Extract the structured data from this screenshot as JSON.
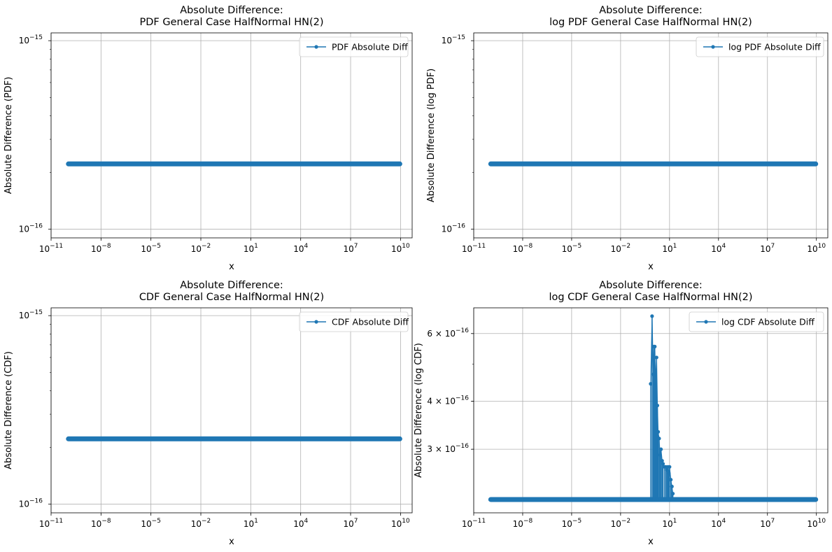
{
  "figure": {
    "background": "#ffffff",
    "line_color": "#1f77b4",
    "grid_color": "#b0b0b0"
  },
  "chart_data": [
    {
      "type": "line",
      "title": [
        "Absolute Difference:",
        "PDF General Case HalfNormal HN(2)"
      ],
      "xlabel": "x",
      "ylabel": "Absolute Difference (PDF)",
      "xscale": "log",
      "yscale": "log",
      "xlim": [
        1e-11,
        50000000000.0
      ],
      "ylim": [
        9e-17,
        1.1e-15
      ],
      "xtick_exponents": [
        -11,
        -8,
        -5,
        -2,
        1,
        4,
        7,
        10
      ],
      "ytick_exponents": [
        -15,
        -16
      ],
      "grid": true,
      "legend": "top-right",
      "series": [
        {
          "name": "PDF Absolute Diff",
          "marker": "dot",
          "x_range": [
            1e-10,
            10000000000.0
          ],
          "constant_y": 2.220446e-16
        }
      ]
    },
    {
      "type": "line",
      "title": [
        "Absolute Difference:",
        "log PDF General Case HalfNormal HN(2)"
      ],
      "xlabel": "x",
      "ylabel": "Absolute Difference (log PDF)",
      "xscale": "log",
      "yscale": "log",
      "xlim": [
        1e-11,
        50000000000.0
      ],
      "ylim": [
        9e-17,
        1.1e-15
      ],
      "xtick_exponents": [
        -11,
        -8,
        -5,
        -2,
        1,
        4,
        7,
        10
      ],
      "ytick_exponents": [
        -15,
        -16
      ],
      "grid": true,
      "legend": "top-right",
      "series": [
        {
          "name": "log PDF Absolute Diff",
          "marker": "dot",
          "x_range": [
            1e-10,
            10000000000.0
          ],
          "constant_y": 2.220446e-16
        }
      ]
    },
    {
      "type": "line",
      "title": [
        "Absolute Difference:",
        "CDF General Case HalfNormal HN(2)"
      ],
      "xlabel": "x",
      "ylabel": "Absolute Difference (CDF)",
      "xscale": "log",
      "yscale": "log",
      "xlim": [
        1e-11,
        50000000000.0
      ],
      "ylim": [
        9e-17,
        1.1e-15
      ],
      "xtick_exponents": [
        -11,
        -8,
        -5,
        -2,
        1,
        4,
        7,
        10
      ],
      "ytick_exponents": [
        -15,
        -16
      ],
      "grid": true,
      "legend": "top-right",
      "series": [
        {
          "name": "CDF Absolute Diff",
          "marker": "dot",
          "x_range": [
            1e-10,
            10000000000.0
          ],
          "constant_y": 2.220446e-16
        }
      ]
    },
    {
      "type": "line",
      "title": [
        "Absolute Difference:",
        "log CDF General Case HalfNormal HN(2)"
      ],
      "xlabel": "x",
      "ylabel": "Absolute Difference (log CDF)",
      "xscale": "log",
      "yscale": "log",
      "xlim": [
        1e-11,
        50000000000.0
      ],
      "ylim": [
        2.05e-16,
        7e-16
      ],
      "xtick_exponents": [
        -11,
        -8,
        -5,
        -2,
        1,
        4,
        7,
        10
      ],
      "yticks": [
        {
          "mantissa": "6",
          "exponent": -16,
          "value": 6e-16
        },
        {
          "mantissa": "4",
          "exponent": -16,
          "value": 4e-16
        },
        {
          "mantissa": "3",
          "exponent": -16,
          "value": 3e-16
        }
      ],
      "grid": true,
      "legend": "top-right",
      "series": [
        {
          "name": "log CDF Absolute Diff",
          "marker": "dot",
          "x_range": [
            1e-10,
            10000000000.0
          ],
          "baseline_y": 2.220446e-16,
          "spike_region": {
            "x": [
              0.7,
              0.85,
              1.0,
              1.1,
              1.25,
              1.4,
              1.6,
              1.8,
              2.0,
              2.3,
              2.6,
              3.0,
              3.5,
              4.0,
              5.0,
              6.0,
              7.0,
              8.0,
              9.0,
              10.0,
              12.0,
              14.0,
              16.0
            ],
            "y": [
              4.44e-16,
              6.66e-16,
              4.7e-16,
              5.55e-16,
              5.55e-16,
              4.44e-16,
              5.2e-16,
              3.9e-16,
              3.33e-16,
              3.2e-16,
              2.9e-16,
              3e-16,
              2.8e-16,
              2.75e-16,
              2.7e-16,
              2.7e-16,
              2.65e-16,
              2.7e-16,
              2.6e-16,
              2.7e-16,
              2.5e-16,
              2.4e-16,
              2.3e-16
            ]
          }
        }
      ]
    }
  ]
}
